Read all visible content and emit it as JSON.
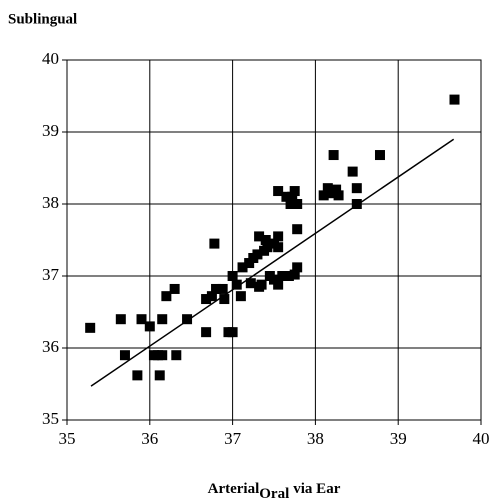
{
  "chart_data": {
    "type": "scatter",
    "title": "Sublingual",
    "x_label": {
      "main": "Arterial",
      "subscript": "Oral",
      "rest": "via Ear"
    },
    "color": "#000000",
    "grid": true,
    "xlim": [
      35,
      40
    ],
    "xticks": [
      35,
      36,
      37,
      38,
      39,
      40
    ],
    "ylim": [
      35,
      40
    ],
    "yticks": [
      35,
      36,
      37,
      38,
      39,
      40
    ],
    "x": [
      35.28,
      35.65,
      35.7,
      35.85,
      35.9,
      36.0,
      36.05,
      36.1,
      36.12,
      36.15,
      36.15,
      36.2,
      36.3,
      36.32,
      36.45,
      36.68,
      36.68,
      36.75,
      36.78,
      36.8,
      36.88,
      36.9,
      36.95,
      37.0,
      37.0,
      37.05,
      37.1,
      37.12,
      37.2,
      37.22,
      37.25,
      37.3,
      37.32,
      37.32,
      37.35,
      37.38,
      37.4,
      37.42,
      37.45,
      37.5,
      37.5,
      37.55,
      37.55,
      37.55,
      37.55,
      37.6,
      37.65,
      37.68,
      37.7,
      37.72,
      37.75,
      37.75,
      37.78,
      37.78,
      37.78,
      38.1,
      38.15,
      38.2,
      38.22,
      38.25,
      38.28,
      38.45,
      38.5,
      38.5,
      38.78,
      39.68
    ],
    "y": [
      36.28,
      36.4,
      35.9,
      35.62,
      36.4,
      36.3,
      35.9,
      35.9,
      35.62,
      35.9,
      36.4,
      36.72,
      36.82,
      35.9,
      36.4,
      36.22,
      36.68,
      36.72,
      37.45,
      36.82,
      36.82,
      36.68,
      36.22,
      36.22,
      37.0,
      36.88,
      36.72,
      37.12,
      37.18,
      36.9,
      37.25,
      37.3,
      36.85,
      37.55,
      36.88,
      37.35,
      37.5,
      37.4,
      37.0,
      36.95,
      37.45,
      37.4,
      37.55,
      38.18,
      36.88,
      37.0,
      38.1,
      37.0,
      38.0,
      38.1,
      37.02,
      38.18,
      38.0,
      37.12,
      37.65,
      38.12,
      38.22,
      38.15,
      38.68,
      38.2,
      38.12,
      38.45,
      38.22,
      38.0,
      38.68,
      39.45
    ],
    "trend_line": {
      "x": [
        35.29,
        39.67
      ],
      "y": [
        35.47,
        38.9
      ]
    }
  }
}
